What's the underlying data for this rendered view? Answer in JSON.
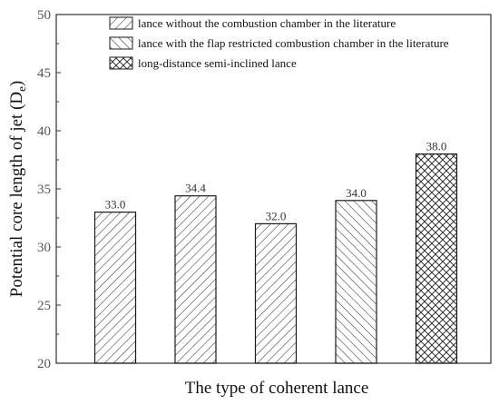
{
  "chart_data": {
    "type": "bar",
    "categories": [
      "",
      "",
      "",
      "",
      ""
    ],
    "values": [
      33.0,
      34.4,
      32.0,
      34.0,
      38.0
    ],
    "data_labels": [
      "33.0",
      "34.4",
      "32.0",
      "34.0",
      "38.0"
    ],
    "bar_patterns": [
      "diag-forward",
      "diag-forward",
      "diag-forward",
      "diag-back",
      "crosshatch"
    ],
    "xlabel": "The type of coherent lance",
    "ylabel": "Potential core length of jet (D",
    "ylabel_subscript": "e",
    "ylabel_close": ")",
    "ylim": [
      20,
      50
    ],
    "yticks": [
      "20",
      "25",
      "30",
      "35",
      "40",
      "45",
      "50"
    ],
    "grid": false,
    "legend_position": "top",
    "legend": [
      {
        "label": "lance without the combustion chamber in the literature",
        "pattern": "diag-forward"
      },
      {
        "label": "lance with the flap restricted combustion chamber in the literature",
        "pattern": "diag-back"
      },
      {
        "label": "long-distance semi-inclined lance",
        "pattern": "crosshatch"
      }
    ]
  },
  "colors": {
    "bar_stroke": "#1a1a1a",
    "hatch": "#333333",
    "axis": "#333333"
  }
}
